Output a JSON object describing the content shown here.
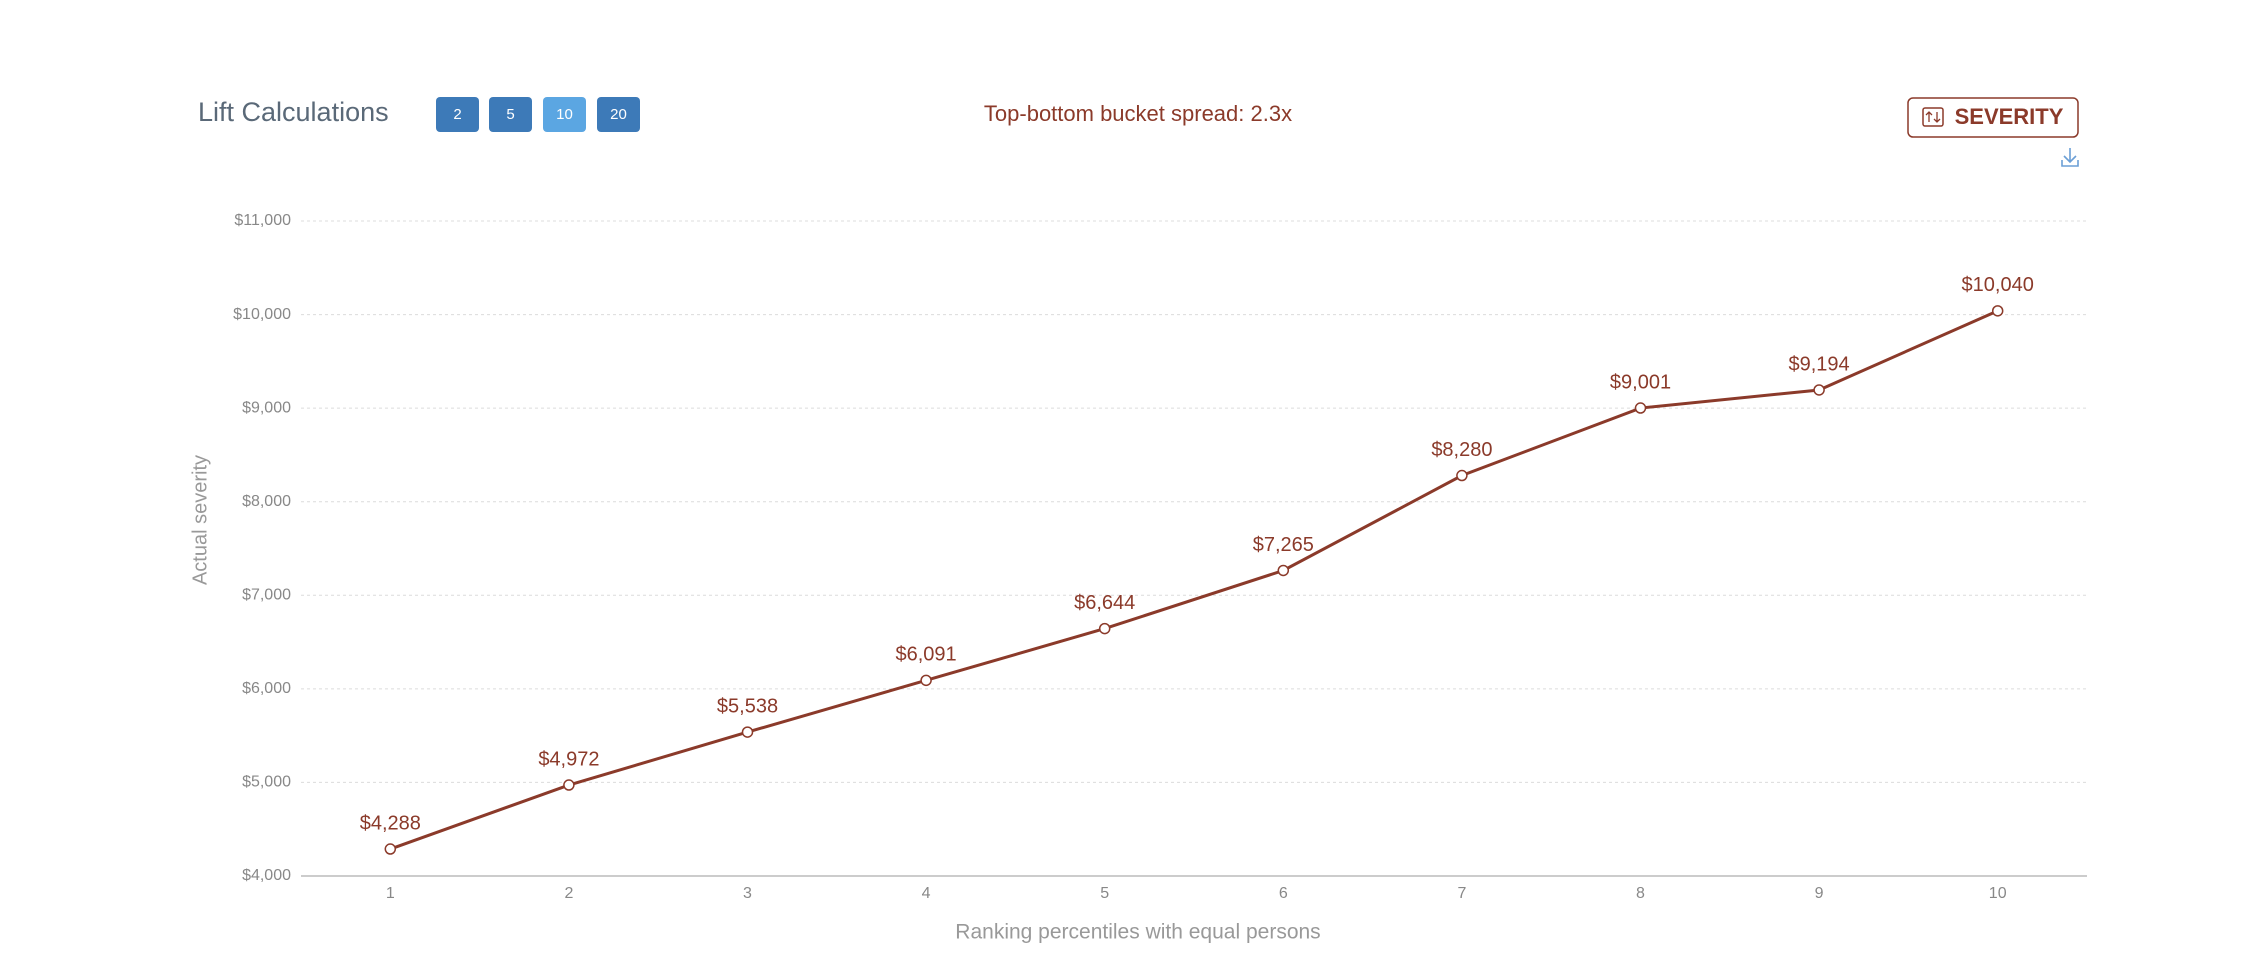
{
  "chart_data": {
    "type": "line",
    "title": "Lift Calculations",
    "annotation": "Top-bottom bucket spread: 2.3x",
    "xlabel": "Ranking percentiles with equal persons",
    "ylabel": "Actual severity",
    "categories": [
      "1",
      "2",
      "3",
      "4",
      "5",
      "6",
      "7",
      "8",
      "9",
      "10"
    ],
    "series": [
      {
        "name": "Actual severity",
        "color": "#8b3a2a",
        "values": [
          4288,
          4972,
          5538,
          6091,
          6644,
          7265,
          8280,
          9001,
          9194,
          10040
        ],
        "value_labels": [
          "$4,288",
          "$4,972",
          "$5,538",
          "$6,091",
          "$6,644",
          "$7,265",
          "$8,280",
          "$9,001",
          "$9,194",
          "$10,040"
        ]
      }
    ],
    "ylim": [
      4000,
      11000
    ],
    "yticks": [
      {
        "value": 4000,
        "label": "$4,000"
      },
      {
        "value": 5000,
        "label": "$5,000"
      },
      {
        "value": 6000,
        "label": "$6,000"
      },
      {
        "value": 7000,
        "label": "$7,000"
      },
      {
        "value": 8000,
        "label": "$8,000"
      },
      {
        "value": 9000,
        "label": "$9,000"
      },
      {
        "value": 10000,
        "label": "$10,000"
      },
      {
        "value": 11000,
        "label": "$11,000"
      }
    ],
    "grid": true
  },
  "controls": {
    "bucket_options": [
      "2",
      "5",
      "10",
      "20"
    ],
    "active_bucket": "10",
    "metric_button": "SEVERITY"
  }
}
